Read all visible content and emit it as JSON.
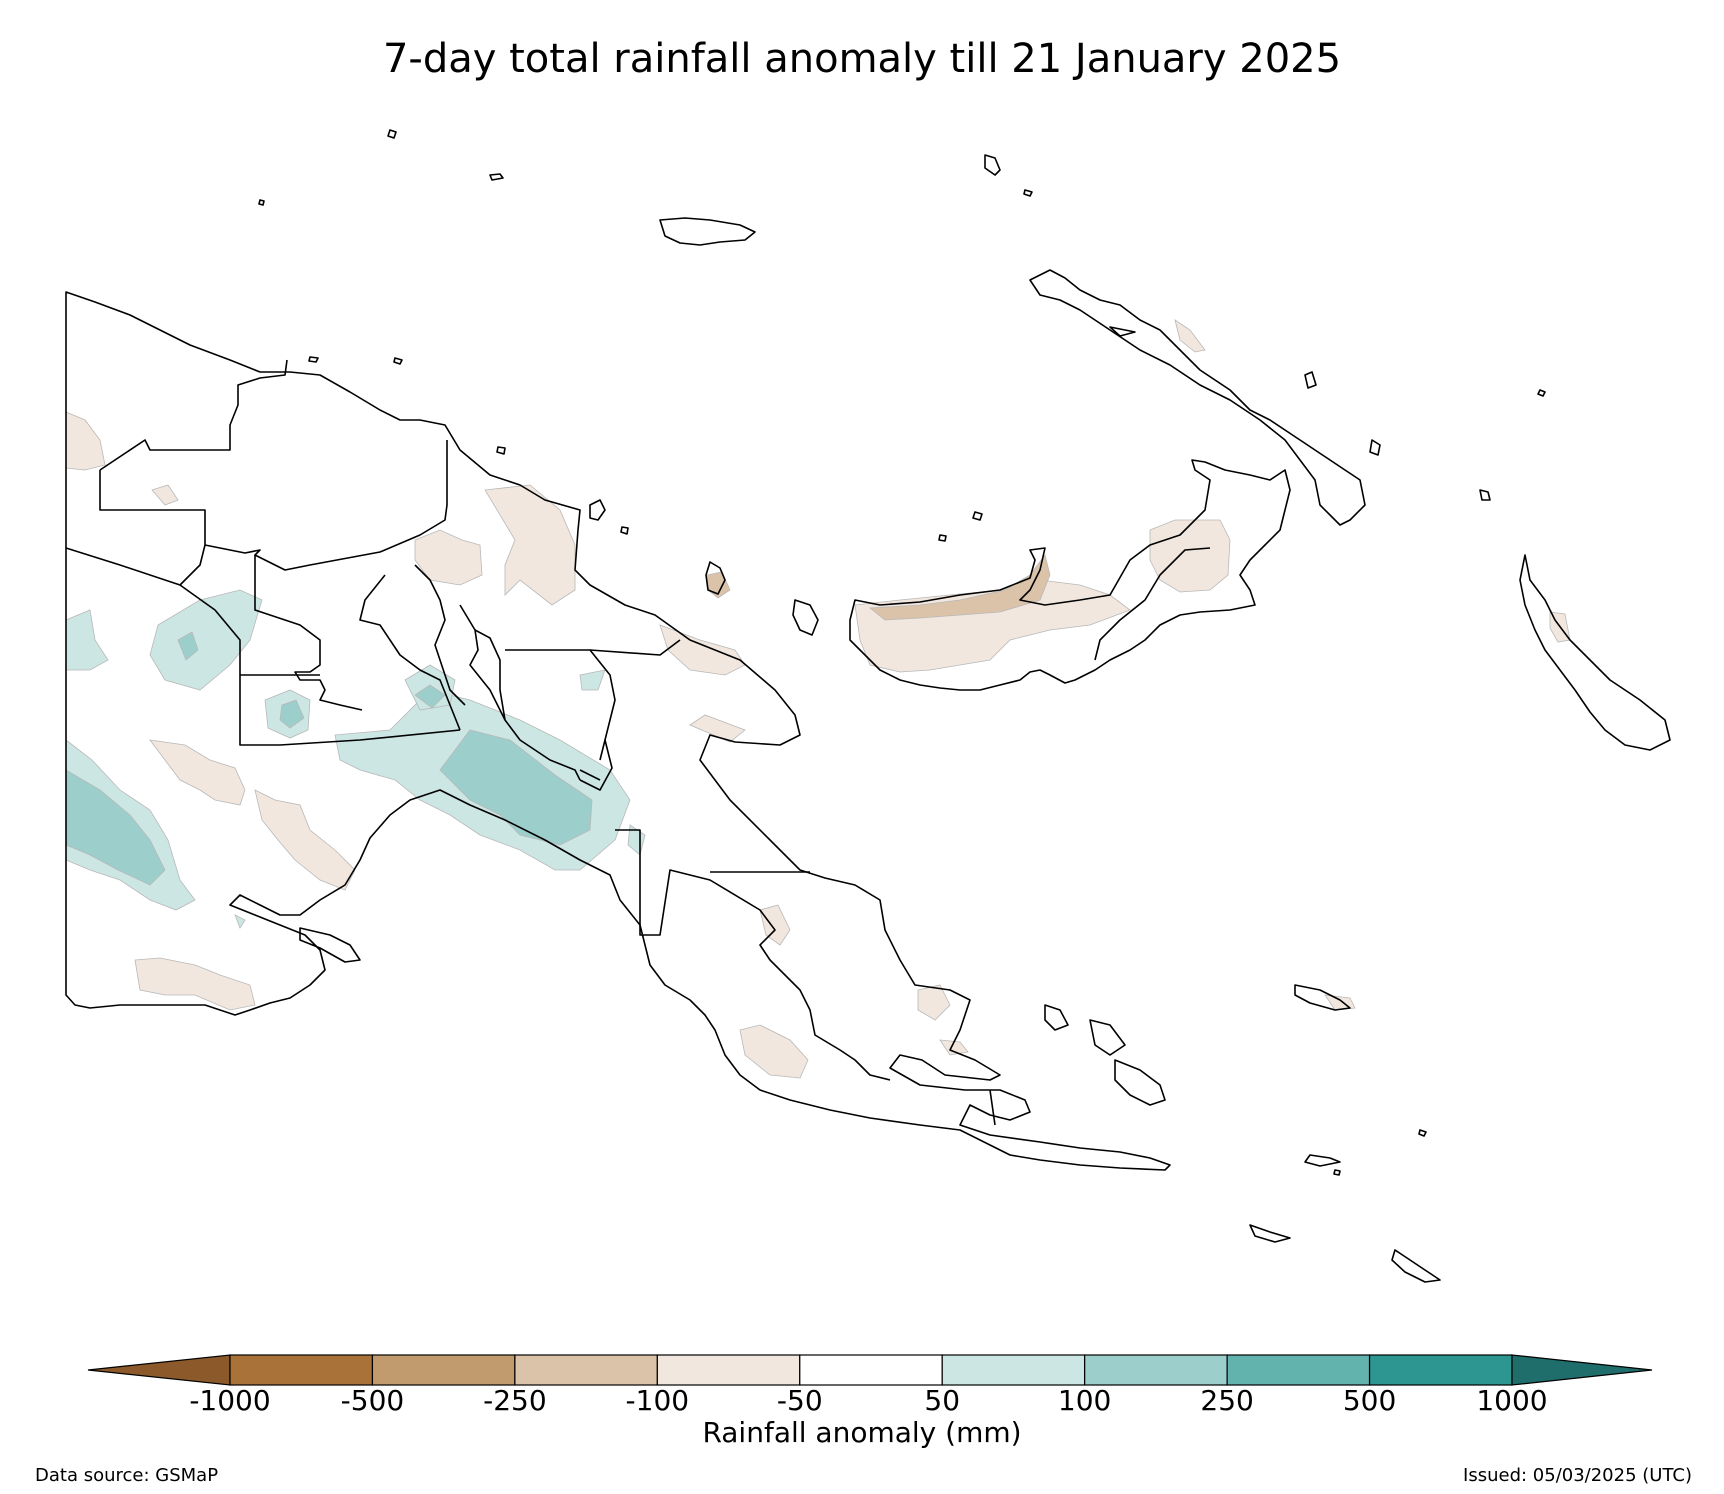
{
  "title": "7-day total rainfall anomaly till 21 January 2025",
  "map": {
    "region": "Papua New Guinea",
    "provinces_outlined": true,
    "colors": {
      "land_fill": "#ffffff",
      "outline": "#000000",
      "dry_50_100": "#f1e7de",
      "dry_100_250": "#dbc3a9",
      "wet_50_100": "#cce6e4",
      "wet_100_250": "#9ccecb"
    }
  },
  "colorbar": {
    "label": "Rainfall anomaly (mm)",
    "ticks": [
      "-1000",
      "-500",
      "-250",
      "-100",
      "-50",
      "50",
      "100",
      "250",
      "500",
      "1000"
    ],
    "segment_colors": [
      "#8c5a2a",
      "#a97238",
      "#c19a6e",
      "#dbc3a9",
      "#f1e7de",
      "#ffffff",
      "#cce6e4",
      "#9ccecb",
      "#62b2ae",
      "#2e9690",
      "#1f6e6b"
    ]
  },
  "footer": {
    "source": "Data source: GSMaP",
    "issued": "Issued: 05/03/2025 (UTC)"
  }
}
